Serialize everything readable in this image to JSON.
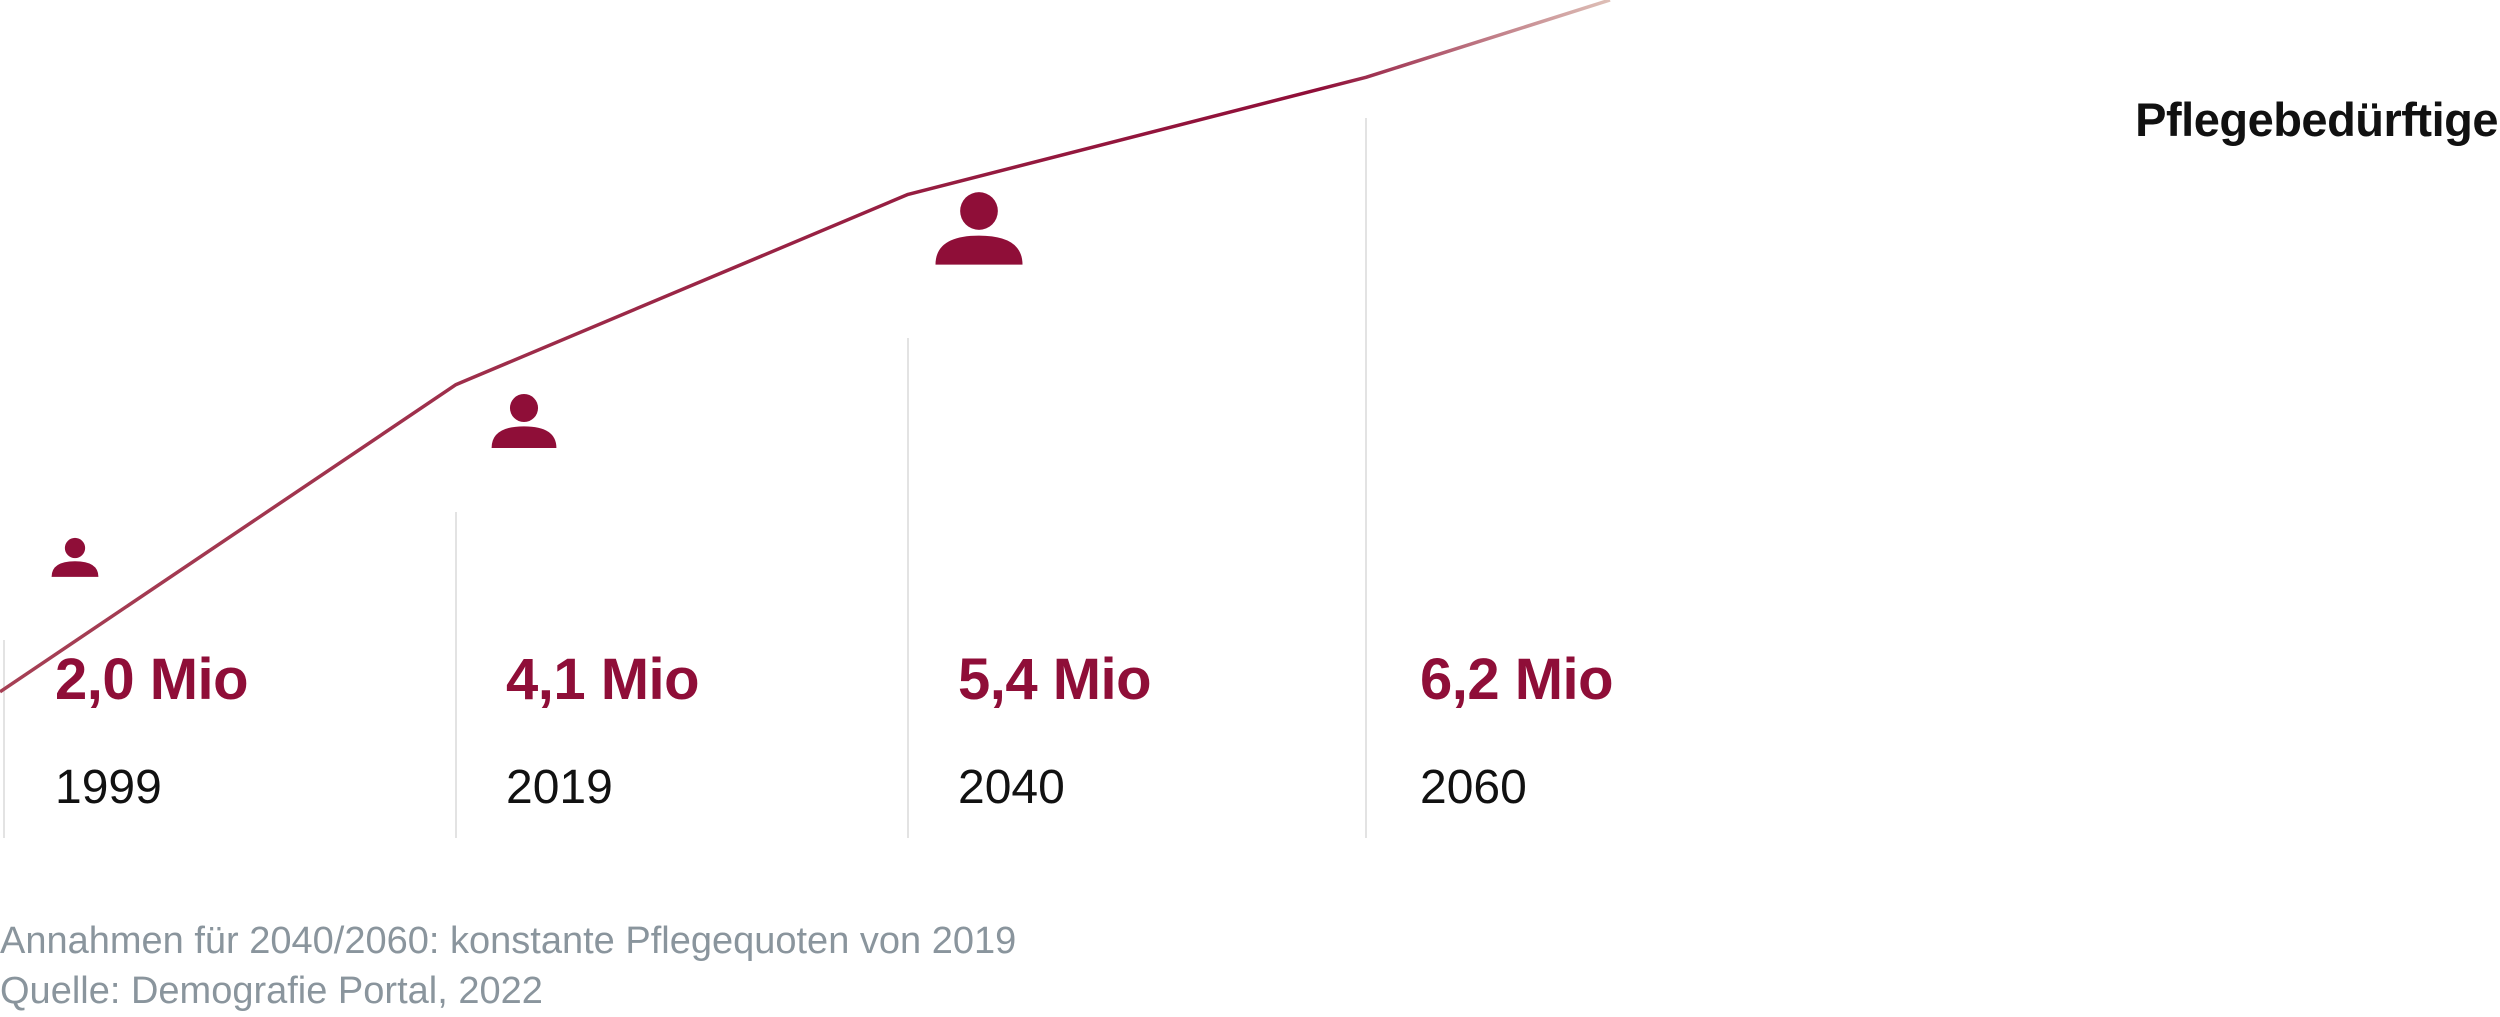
{
  "chart_data": {
    "type": "line",
    "title": "",
    "legend": {
      "label": "Pflegebedürftige",
      "placement": "top-right"
    },
    "categories": [
      "1999",
      "2019",
      "2040",
      "2060"
    ],
    "series": [
      {
        "name": "Pflegebedürftige",
        "values": [
          2.0,
          4.1,
          5.4,
          6.2
        ],
        "value_labels": [
          "2,0 Mio",
          "4,1 Mio",
          "5,4 Mio",
          "6,2 Mio"
        ],
        "unit": "Mio"
      }
    ],
    "marker_icon": "person-icon",
    "grid": false,
    "colors": {
      "series": "#8f0e38",
      "values": "#8f0e38",
      "dividers": "#e3e3e3",
      "text": "#111111",
      "footnote": "#8a959d"
    }
  },
  "footnote": {
    "note": "Annahmen für 2040/2060: konstante Pflegequoten von 2019",
    "source": "Quelle: Demografie Portal, 2022"
  }
}
